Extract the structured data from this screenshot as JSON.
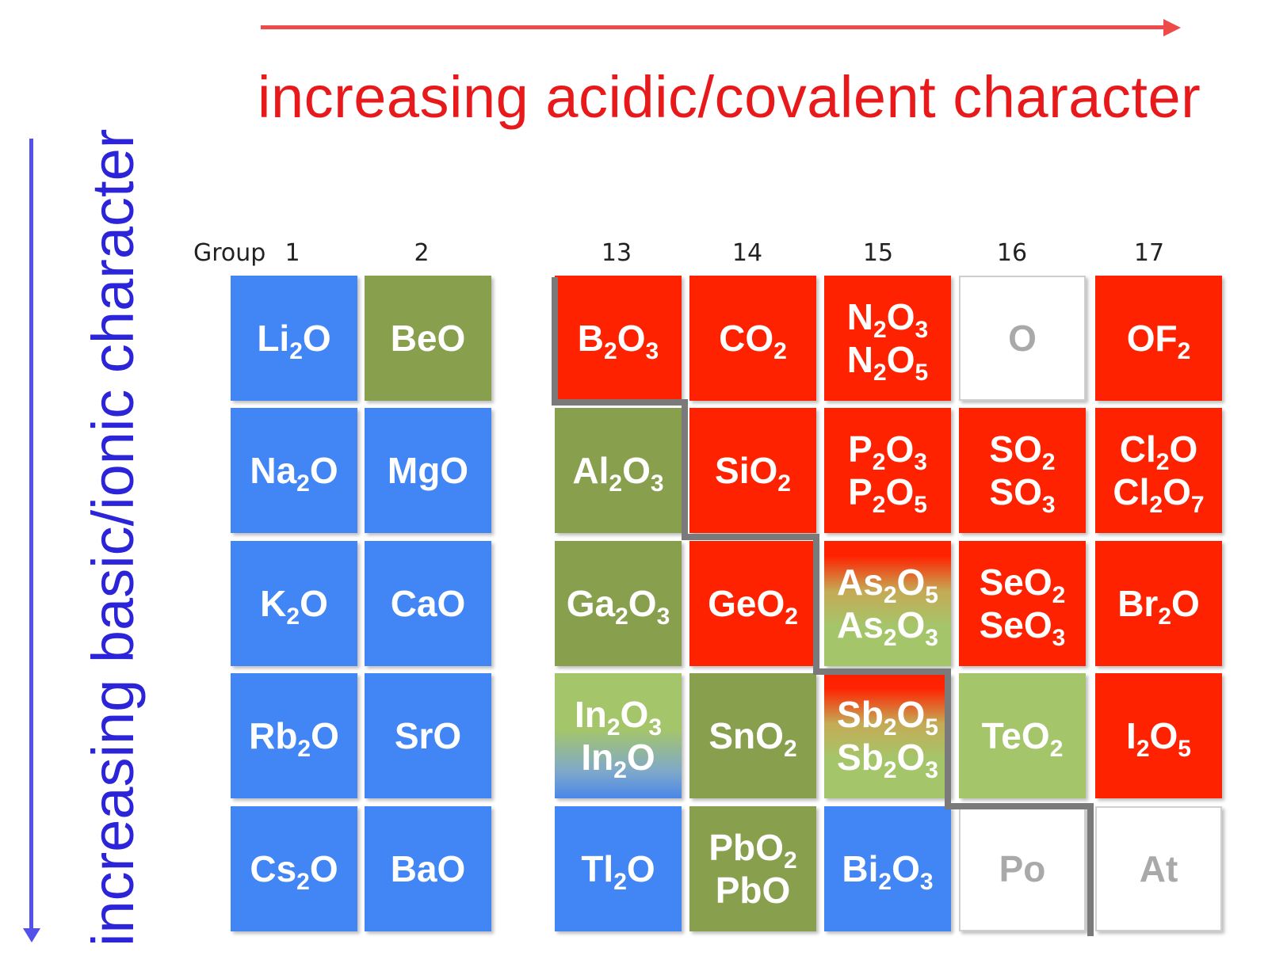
{
  "axis_labels": {
    "horizontal": "increasing acidic/covalent character",
    "vertical": "increasing basic/ionic character"
  },
  "colors": {
    "acid_arrow": "#ef4a4a",
    "acid_text": "#e8191b",
    "basic_arrow": "#5252e8",
    "basic_text": "#2b24d8",
    "basic_oxide": "#4285f4",
    "amphoteric_oxide": "#88a04e",
    "amphoteric_light": "#a5c56a",
    "acidic_oxide": "#ff2200",
    "no_oxide": "#ffffff"
  },
  "group_header": {
    "word": "Group",
    "numbers": [
      "1",
      "2",
      "13",
      "14",
      "15",
      "16",
      "17"
    ]
  },
  "cells": [
    {
      "id": "li2o",
      "formulas": [
        [
          "Li",
          "2",
          "O"
        ]
      ],
      "class": "basic"
    },
    {
      "id": "beo",
      "formulas": [
        [
          "BeO"
        ]
      ],
      "class": "amphoteric"
    },
    {
      "id": "b2o3",
      "formulas": [
        [
          "B",
          "2",
          "O",
          "3"
        ]
      ],
      "class": "acidic"
    },
    {
      "id": "co2",
      "formulas": [
        [
          "CO",
          "2"
        ]
      ],
      "class": "acidic"
    },
    {
      "id": "n-oxides",
      "formulas": [
        [
          "N",
          "2",
          "O",
          "3"
        ],
        [
          "N",
          "2",
          "O",
          "5"
        ]
      ],
      "class": "acidic"
    },
    {
      "id": "o",
      "formulas": [
        [
          "O"
        ]
      ],
      "class": "none"
    },
    {
      "id": "of2",
      "formulas": [
        [
          "OF",
          "2"
        ]
      ],
      "class": "acidic"
    },
    {
      "id": "na2o",
      "formulas": [
        [
          "Na",
          "2",
          "O"
        ]
      ],
      "class": "basic"
    },
    {
      "id": "mgo",
      "formulas": [
        [
          "MgO"
        ]
      ],
      "class": "basic"
    },
    {
      "id": "al2o3",
      "formulas": [
        [
          "Al",
          "2",
          "O",
          "3"
        ]
      ],
      "class": "amphoteric"
    },
    {
      "id": "sio2",
      "formulas": [
        [
          "SiO",
          "2"
        ]
      ],
      "class": "acidic"
    },
    {
      "id": "p-oxides",
      "formulas": [
        [
          "P",
          "2",
          "O",
          "3"
        ],
        [
          "P",
          "2",
          "O",
          "5"
        ]
      ],
      "class": "acidic"
    },
    {
      "id": "s-oxides",
      "formulas": [
        [
          "SO",
          "2"
        ],
        [
          "SO",
          "3"
        ]
      ],
      "class": "acidic"
    },
    {
      "id": "cl-oxides",
      "formulas": [
        [
          "Cl",
          "2",
          "O"
        ],
        [
          "Cl",
          "2",
          "O",
          "7"
        ]
      ],
      "class": "acidic"
    },
    {
      "id": "k2o",
      "formulas": [
        [
          "K",
          "2",
          "O"
        ]
      ],
      "class": "basic"
    },
    {
      "id": "cao",
      "formulas": [
        [
          "CaO"
        ]
      ],
      "class": "basic"
    },
    {
      "id": "ga2o3",
      "formulas": [
        [
          "Ga",
          "2",
          "O",
          "3"
        ]
      ],
      "class": "amphoteric"
    },
    {
      "id": "geo2",
      "formulas": [
        [
          "GeO",
          "2"
        ]
      ],
      "class": "acidic"
    },
    {
      "id": "as-oxides",
      "formulas": [
        [
          "As",
          "2",
          "O",
          "5"
        ],
        [
          "As",
          "2",
          "O",
          "3"
        ]
      ],
      "class": "acidic-to-amphoteric"
    },
    {
      "id": "se-oxides",
      "formulas": [
        [
          "SeO",
          "2"
        ],
        [
          "SeO",
          "3"
        ]
      ],
      "class": "acidic"
    },
    {
      "id": "br2o",
      "formulas": [
        [
          "Br",
          "2",
          "O"
        ]
      ],
      "class": "acidic"
    },
    {
      "id": "rb2o",
      "formulas": [
        [
          "Rb",
          "2",
          "O"
        ]
      ],
      "class": "basic"
    },
    {
      "id": "sro",
      "formulas": [
        [
          "SrO"
        ]
      ],
      "class": "basic"
    },
    {
      "id": "in-oxides",
      "formulas": [
        [
          "In",
          "2",
          "O",
          "3"
        ],
        [
          "In",
          "2",
          "O"
        ]
      ],
      "class": "amphoteric-to-basic"
    },
    {
      "id": "sno2",
      "formulas": [
        [
          "SnO",
          "2"
        ]
      ],
      "class": "amphoteric"
    },
    {
      "id": "sb-oxides",
      "formulas": [
        [
          "Sb",
          "2",
          "O",
          "5"
        ],
        [
          "Sb",
          "2",
          "O",
          "3"
        ]
      ],
      "class": "acidic-to-amphoteric"
    },
    {
      "id": "teo2",
      "formulas": [
        [
          "TeO",
          "2"
        ]
      ],
      "class": "amphoteric-light"
    },
    {
      "id": "i2o5",
      "formulas": [
        [
          "I",
          "2",
          "O",
          "5"
        ]
      ],
      "class": "acidic"
    },
    {
      "id": "cs2o",
      "formulas": [
        [
          "Cs",
          "2",
          "O"
        ]
      ],
      "class": "basic"
    },
    {
      "id": "bao",
      "formulas": [
        [
          "BaO"
        ]
      ],
      "class": "basic"
    },
    {
      "id": "tl2o",
      "formulas": [
        [
          "Tl",
          "2",
          "O"
        ]
      ],
      "class": "basic"
    },
    {
      "id": "pb-oxides",
      "formulas": [
        [
          "PbO",
          "2"
        ],
        [
          "PbO"
        ]
      ],
      "class": "amphoteric"
    },
    {
      "id": "bi2o3",
      "formulas": [
        [
          "Bi",
          "2",
          "O",
          "3"
        ]
      ],
      "class": "basic"
    },
    {
      "id": "po",
      "formulas": [
        [
          "Po"
        ]
      ],
      "class": "none"
    },
    {
      "id": "at",
      "formulas": [
        [
          "At"
        ]
      ],
      "class": "none"
    }
  ]
}
